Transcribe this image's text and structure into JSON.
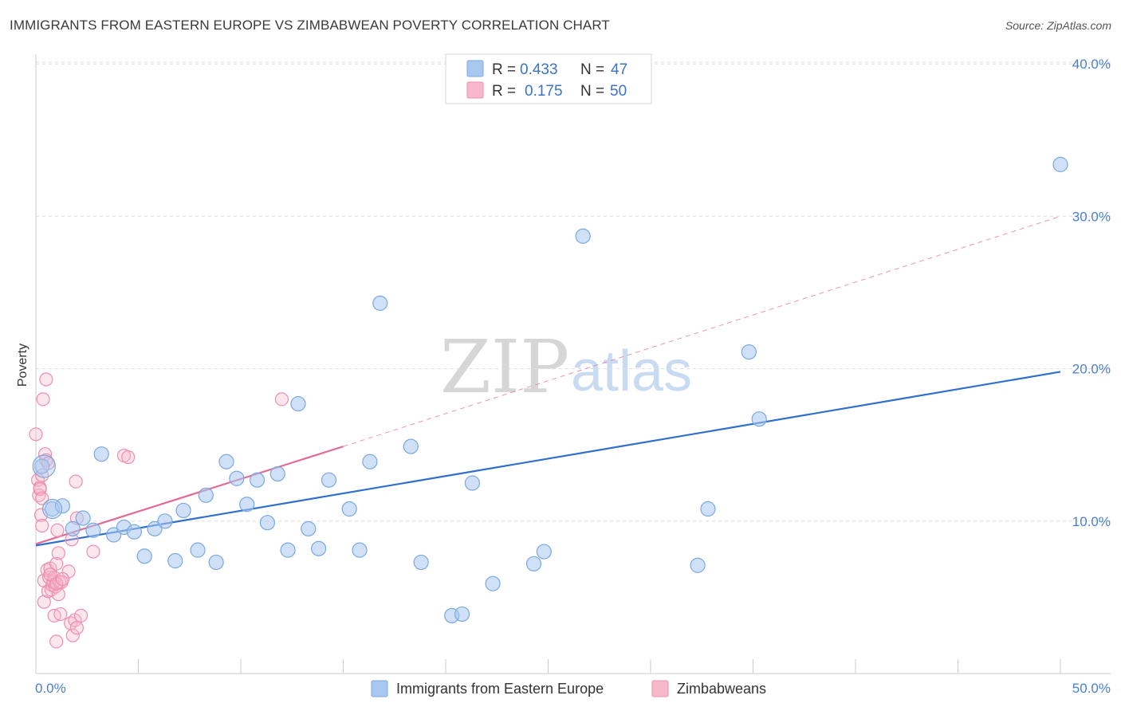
{
  "header": {
    "title": "IMMIGRANTS FROM EASTERN EUROPE VS ZIMBABWEAN POVERTY CORRELATION CHART",
    "source": "Source: ZipAtlas.com"
  },
  "watermark": {
    "zip": "ZIP",
    "atlas": "atlas"
  },
  "legend": {
    "rows": [
      {
        "r_label": "R =",
        "r_value": "0.433",
        "n_label": "N =",
        "n_value": "47",
        "color": "#a9c8f0"
      },
      {
        "r_label": "R =",
        "r_value": "0.175",
        "n_label": "N =",
        "n_value": "50",
        "color": "#f7b8cb"
      }
    ]
  },
  "bottom_legend": {
    "items": [
      {
        "label": "Immigrants from Eastern Europe",
        "color": "#a9c8f0"
      },
      {
        "label": "Zimbabweans",
        "color": "#f7b8cb"
      }
    ]
  },
  "colors": {
    "blue_fill": "#a9c8f0",
    "blue_stroke": "#7aa8de",
    "blue_line": "#2f6fcf",
    "pink_fill": "#f7b8cb",
    "pink_stroke": "#ec8fac",
    "pink_line": "#e36a96",
    "grid": "#dddddd",
    "tick_text": "#4a7fd0"
  },
  "chart_data": {
    "type": "scatter",
    "title": "IMMIGRANTS FROM EASTERN EUROPE VS ZIMBABWEAN POVERTY CORRELATION CHART",
    "xlabel": "",
    "ylabel": "Poverty",
    "xlim": [
      0,
      50
    ],
    "ylim": [
      0,
      40
    ],
    "x_tick_labels": [
      "0.0%",
      "50.0%"
    ],
    "y_ticks": [
      10,
      20,
      30,
      40
    ],
    "y_tick_labels": [
      "10.0%",
      "20.0%",
      "30.0%",
      "40.0%"
    ],
    "grid": "horizontal dashed",
    "legend_position": "top-center",
    "series": [
      {
        "name": "Immigrants from Eastern Europe",
        "color": "#a9c8f0",
        "points": [
          [
            0.3,
            13.6
          ],
          [
            0.8,
            10.8
          ],
          [
            1.3,
            11.0
          ],
          [
            1.8,
            9.5
          ],
          [
            2.3,
            10.2
          ],
          [
            2.8,
            9.4
          ],
          [
            3.2,
            14.4
          ],
          [
            3.8,
            9.1
          ],
          [
            4.3,
            9.6
          ],
          [
            4.8,
            9.3
          ],
          [
            5.3,
            7.7
          ],
          [
            5.8,
            9.5
          ],
          [
            6.3,
            10.0
          ],
          [
            6.8,
            7.4
          ],
          [
            7.2,
            10.7
          ],
          [
            7.9,
            8.1
          ],
          [
            8.3,
            11.7
          ],
          [
            8.8,
            7.3
          ],
          [
            9.3,
            13.9
          ],
          [
            9.8,
            12.8
          ],
          [
            10.3,
            11.1
          ],
          [
            10.8,
            12.7
          ],
          [
            11.3,
            9.9
          ],
          [
            11.8,
            13.1
          ],
          [
            12.3,
            8.1
          ],
          [
            12.8,
            17.7
          ],
          [
            13.3,
            9.5
          ],
          [
            13.8,
            8.2
          ],
          [
            14.3,
            12.7
          ],
          [
            15.3,
            10.8
          ],
          [
            15.8,
            8.1
          ],
          [
            16.3,
            13.9
          ],
          [
            16.8,
            24.3
          ],
          [
            18.3,
            14.9
          ],
          [
            18.8,
            7.3
          ],
          [
            20.3,
            3.8
          ],
          [
            20.8,
            3.9
          ],
          [
            21.3,
            12.5
          ],
          [
            22.3,
            5.9
          ],
          [
            24.3,
            7.2
          ],
          [
            24.8,
            8.0
          ],
          [
            26.7,
            28.7
          ],
          [
            32.3,
            7.1
          ],
          [
            32.8,
            10.8
          ],
          [
            34.8,
            21.1
          ],
          [
            35.3,
            16.7
          ],
          [
            50.0,
            33.4
          ]
        ]
      },
      {
        "name": "Zimbabweans",
        "color": "#f7b8cb",
        "points": [
          [
            0.0,
            15.7
          ],
          [
            0.1,
            12.7
          ],
          [
            0.15,
            11.7
          ],
          [
            0.2,
            12.2
          ],
          [
            0.25,
            10.4
          ],
          [
            0.3,
            13.0
          ],
          [
            0.3,
            9.7
          ],
          [
            0.35,
            18.0
          ],
          [
            0.4,
            4.7
          ],
          [
            0.4,
            6.1
          ],
          [
            0.45,
            14.4
          ],
          [
            0.5,
            19.3
          ],
          [
            0.5,
            14.0
          ],
          [
            0.55,
            6.8
          ],
          [
            0.6,
            5.4
          ],
          [
            0.65,
            6.3
          ],
          [
            0.7,
            6.9
          ],
          [
            0.75,
            5.5
          ],
          [
            0.8,
            5.8
          ],
          [
            0.85,
            6.0
          ],
          [
            0.9,
            3.8
          ],
          [
            0.9,
            6.3
          ],
          [
            0.95,
            5.7
          ],
          [
            1.0,
            7.2
          ],
          [
            1.0,
            2.1
          ],
          [
            1.05,
            9.4
          ],
          [
            1.1,
            7.9
          ],
          [
            1.1,
            5.2
          ],
          [
            1.15,
            6.0
          ],
          [
            1.2,
            3.9
          ],
          [
            1.25,
            6.0
          ],
          [
            1.6,
            6.7
          ],
          [
            1.7,
            3.3
          ],
          [
            1.75,
            8.8
          ],
          [
            1.8,
            2.5
          ],
          [
            1.9,
            3.5
          ],
          [
            1.95,
            12.6
          ],
          [
            2.0,
            3.0
          ],
          [
            2.0,
            10.2
          ],
          [
            2.2,
            3.8
          ],
          [
            2.8,
            8.0
          ],
          [
            4.3,
            14.3
          ],
          [
            4.5,
            14.2
          ],
          [
            12.0,
            18.0
          ],
          [
            0.2,
            12.1
          ],
          [
            0.3,
            11.5
          ],
          [
            0.6,
            13.8
          ],
          [
            0.7,
            6.5
          ],
          [
            1.0,
            5.9
          ],
          [
            1.3,
            6.2
          ]
        ]
      }
    ],
    "trend_lines": [
      {
        "series": "Immigrants from Eastern Europe",
        "x": [
          0,
          50
        ],
        "y": [
          8.4,
          19.8
        ],
        "style": "solid"
      },
      {
        "series": "Zimbabweans",
        "x": [
          0,
          15
        ],
        "y": [
          8.5,
          14.9
        ],
        "style": "solid"
      },
      {
        "series": "Zimbabweans",
        "x": [
          15,
          50
        ],
        "y": [
          14.9,
          30.0
        ],
        "style": "dashed"
      }
    ]
  }
}
